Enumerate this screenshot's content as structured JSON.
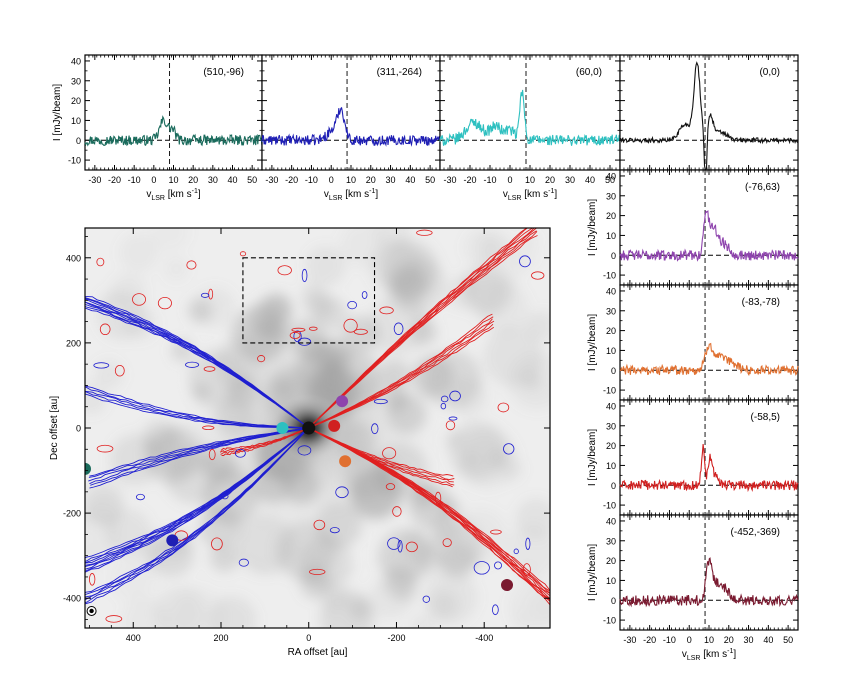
{
  "chart_data": [
    {
      "type": "line",
      "panel": "spectrum",
      "position_label": "(510,-96)",
      "xlabel": "v",
      "xlabel_sub": "LSR",
      "xlabel_unit": " [km s",
      "xlabel_sup": "-1",
      "xlabel_end": "]",
      "ylabel": "I [mJy/beam]",
      "xlim": [
        -35,
        55
      ],
      "ylim": [
        -15,
        43
      ],
      "xticks": [
        -30,
        -20,
        -10,
        0,
        10,
        20,
        30,
        40,
        50
      ],
      "yticks": [
        -10,
        0,
        10,
        20,
        30,
        40
      ],
      "vsys": 8,
      "color": "#1a6b5c",
      "peaks": [
        {
          "v": 5,
          "amp": 10,
          "w": 2.0
        },
        {
          "v": 9.5,
          "amp": 5,
          "w": 1.5
        }
      ],
      "noise": 2.6
    },
    {
      "type": "line",
      "panel": "spectrum",
      "position_label": "(311,-264)",
      "xlabel": "v",
      "xlabel_sub": "LSR",
      "xlabel_unit": " [km s",
      "xlabel_sup": "-1",
      "xlabel_end": "]",
      "xlim": [
        -35,
        55
      ],
      "ylim": [
        -15,
        43
      ],
      "xticks": [
        -30,
        -20,
        -10,
        0,
        10,
        20,
        30,
        40,
        50
      ],
      "yticks": [
        -10,
        0,
        10,
        20,
        30,
        40
      ],
      "vsys": 8,
      "color": "#1f1fb4",
      "peaks": [
        {
          "v": 5,
          "amp": 14,
          "w": 1.8
        },
        {
          "v": 1,
          "amp": 5,
          "w": 3.0
        }
      ],
      "noise": 2.6
    },
    {
      "type": "line",
      "panel": "spectrum",
      "position_label": "(60,0)",
      "xlabel": "v",
      "xlabel_sub": "LSR",
      "xlabel_unit": " [km s",
      "xlabel_sup": "-1",
      "xlabel_end": "]",
      "xlim": [
        -35,
        55
      ],
      "ylim": [
        -15,
        43
      ],
      "xticks": [
        -30,
        -20,
        -10,
        0,
        10,
        20,
        30,
        40,
        50
      ],
      "yticks": [
        -10,
        0,
        10,
        20,
        30,
        40
      ],
      "vsys": 8,
      "color": "#2ec0c0",
      "peaks": [
        {
          "v": 6,
          "amp": 24,
          "w": 1.2
        },
        {
          "v": -18,
          "amp": 9,
          "w": 4.0
        },
        {
          "v": -7,
          "amp": 7,
          "w": 3.0
        },
        {
          "v": 0,
          "amp": 5,
          "w": 2.0
        }
      ],
      "noise": 2.8
    },
    {
      "type": "line",
      "panel": "spectrum",
      "position_label": "(0,0)",
      "xlim": [
        -35,
        55
      ],
      "ylim": [
        -15,
        43
      ],
      "xticks": [
        -30,
        -20,
        -10,
        0,
        10,
        20,
        30,
        40,
        50
      ],
      "yticks": [
        -10,
        0,
        10,
        20,
        30,
        40
      ],
      "vsys": 8,
      "color": "#111111",
      "peaks": [
        {
          "v": 4,
          "amp": 38,
          "w": 1.6
        },
        {
          "v": -2,
          "amp": 8,
          "w": 3.0
        },
        {
          "v": 10.5,
          "amp": 12,
          "w": 1.6
        },
        {
          "v": 16,
          "amp": 4,
          "w": 3.0
        },
        {
          "v": 8.3,
          "amp": -28,
          "w": 0.6
        }
      ],
      "noise": 1.2
    },
    {
      "type": "line",
      "panel": "spectrum",
      "position_label": "(-76,63)",
      "ylabel": "I [mJy/beam]",
      "xlim": [
        -35,
        55
      ],
      "ylim": [
        -15,
        43
      ],
      "xticks": [
        -30,
        -20,
        -10,
        0,
        10,
        20,
        30,
        40,
        50
      ],
      "yticks": [
        -10,
        0,
        10,
        20,
        30,
        40
      ],
      "vsys": 8,
      "color": "#8e44ad",
      "peaks": [
        {
          "v": 8.5,
          "amp": 20,
          "w": 1.2
        },
        {
          "v": 12,
          "amp": 13,
          "w": 2.0
        },
        {
          "v": 17,
          "amp": 6,
          "w": 3.0
        }
      ],
      "noise": 2.6
    },
    {
      "type": "line",
      "panel": "spectrum",
      "position_label": "(-83,-78)",
      "ylabel": "I [mJy/beam]",
      "xlim": [
        -35,
        55
      ],
      "ylim": [
        -15,
        43
      ],
      "xticks": [
        -30,
        -20,
        -10,
        0,
        10,
        20,
        30,
        40,
        50
      ],
      "yticks": [
        -10,
        0,
        10,
        20,
        30,
        40
      ],
      "vsys": 8,
      "color": "#e07030",
      "peaks": [
        {
          "v": 10,
          "amp": 11,
          "w": 1.8
        },
        {
          "v": 15,
          "amp": 6,
          "w": 3.5
        },
        {
          "v": 22,
          "amp": 3,
          "w": 3.0
        }
      ],
      "noise": 2.4
    },
    {
      "type": "line",
      "panel": "spectrum",
      "position_label": "(-58,5)",
      "ylabel": "I [mJy/beam]",
      "xlim": [
        -35,
        55
      ],
      "ylim": [
        -15,
        43
      ],
      "xticks": [
        -30,
        -20,
        -10,
        0,
        10,
        20,
        30,
        40,
        50
      ],
      "yticks": [
        -10,
        0,
        10,
        20,
        30,
        40
      ],
      "vsys": 8,
      "color": "#d02020",
      "peaks": [
        {
          "v": 7,
          "amp": 20,
          "w": 0.8
        },
        {
          "v": 10.5,
          "amp": 13,
          "w": 1.0
        },
        {
          "v": 13,
          "amp": 5,
          "w": 2.0
        }
      ],
      "noise": 2.4
    },
    {
      "type": "line",
      "panel": "spectrum",
      "position_label": "(-452,-369)",
      "xlabel": "v",
      "xlabel_sub": "LSR",
      "xlabel_unit": " [km s",
      "xlabel_sup": "-1",
      "xlabel_end": "]",
      "ylabel": "I [mJy/beam]",
      "xlim": [
        -35,
        55
      ],
      "ylim": [
        -15,
        43
      ],
      "xticks": [
        -30,
        -20,
        -10,
        0,
        10,
        20,
        30,
        40,
        50
      ],
      "yticks": [
        -10,
        0,
        10,
        20,
        30,
        40
      ],
      "vsys": 8,
      "color": "#7a1a30",
      "peaks": [
        {
          "v": 10,
          "amp": 17,
          "w": 1.4
        },
        {
          "v": 14,
          "amp": 8,
          "w": 3.0
        },
        {
          "v": 19,
          "amp": 3,
          "w": 3.0
        }
      ],
      "noise": 2.6
    },
    {
      "type": "scatter",
      "panel": "map",
      "xlabel": "RA offset [au]",
      "ylabel": "Dec offset [au]",
      "xlim": [
        510,
        -550
      ],
      "ylim": [
        -470,
        470
      ],
      "xticks": [
        400,
        200,
        0,
        -200,
        -400
      ],
      "yticks": [
        400,
        200,
        0,
        -200,
        -400
      ],
      "background": "grayscale continuum",
      "contour_colors": {
        "blueshifted": "#1f1fd0",
        "redshifted": "#e02020"
      },
      "dashed_box": {
        "x": [
          150,
          -150
        ],
        "y": [
          200,
          400
        ]
      },
      "beam_marker": {
        "x": 495,
        "y": -430
      },
      "points": [
        {
          "label": "(510,-96)",
          "x": 510,
          "y": -96,
          "color": "#1a6b5c"
        },
        {
          "label": "(311,-264)",
          "x": 311,
          "y": -264,
          "color": "#1f1fb4"
        },
        {
          "label": "(60,0)",
          "x": 60,
          "y": 0,
          "color": "#2ec0c0"
        },
        {
          "label": "(0,0)",
          "x": 0,
          "y": 0,
          "color": "#111111"
        },
        {
          "label": "(-76,63)",
          "x": -76,
          "y": 63,
          "color": "#8e44ad"
        },
        {
          "label": "(-83,-78)",
          "x": -83,
          "y": -78,
          "color": "#e07030"
        },
        {
          "label": "(-58,5)",
          "x": -58,
          "y": 5,
          "color": "#d02020"
        },
        {
          "label": "(-452,-369)",
          "x": -452,
          "y": -369,
          "color": "#7a1a30"
        }
      ]
    }
  ]
}
